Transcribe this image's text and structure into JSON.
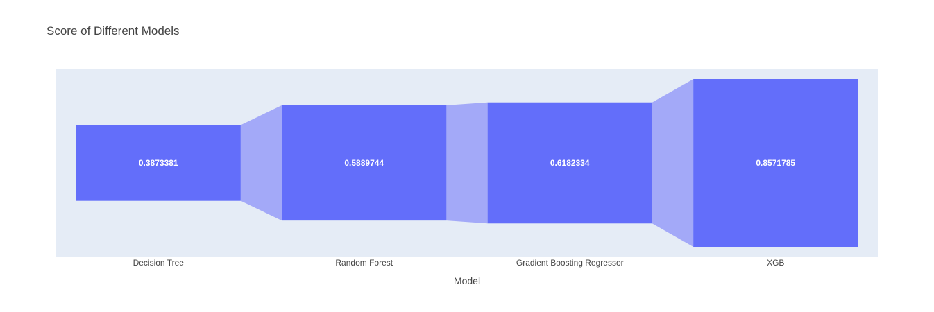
{
  "chart_data": {
    "type": "funnel",
    "orientation": "vertical",
    "title": "Score of Different Models",
    "xlabel": "Model",
    "categories": [
      "Decision Tree",
      "Random Forest",
      "Gradient Boosting Regressor",
      "XGB"
    ],
    "values": [
      0.3873381,
      0.5889744,
      0.6182334,
      0.8571785
    ],
    "value_labels": [
      "0.3873381",
      "0.5889744",
      "0.6182334",
      "0.8571785"
    ],
    "grid": false,
    "colors": {
      "bar": "#636efa",
      "connector": "#a3a9f8",
      "plot_background": "#e5ecf6",
      "text": "#444444",
      "bar_text": "#ffffff"
    }
  }
}
